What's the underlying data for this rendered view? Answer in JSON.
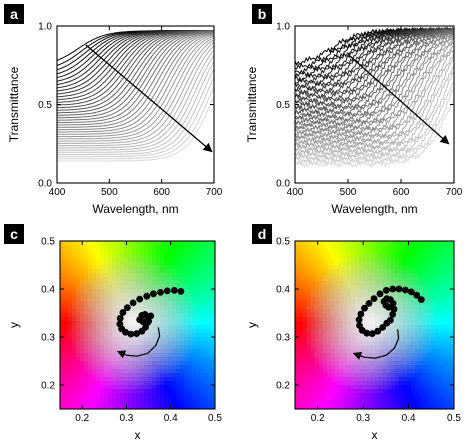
{
  "chart_data": [
    {
      "panel": "a",
      "type": "line",
      "xlabel": "Wavelength, nm",
      "ylabel": "Transmittance",
      "xlim": [
        400,
        700
      ],
      "ylim": [
        0,
        1
      ],
      "xticks": [
        "400",
        "500",
        "600",
        "700"
      ],
      "yticks": [
        "0.0",
        "0.5",
        "1.0"
      ],
      "curve_count": 38,
      "curve_colors": [
        "#000000",
        "#d8d8d8"
      ],
      "curve_shape": "sigmoid edge shifting to longer wavelength",
      "edge_wavelength_range": [
        440,
        700
      ],
      "max_transmittance": 0.97,
      "baseline_transmittance_range": [
        0.74,
        0.14
      ],
      "arrow": {
        "from": {
          "x": 455,
          "y": 0.88
        },
        "to": {
          "x": 696,
          "y": 0.2
        }
      }
    },
    {
      "panel": "b",
      "type": "line",
      "xlabel": "Wavelength, nm",
      "ylabel": "Transmittance",
      "xlim": [
        400,
        700
      ],
      "ylim": [
        0,
        1
      ],
      "xticks": [
        "400",
        "500",
        "600",
        "700"
      ],
      "yticks": [
        "0.0",
        "0.5",
        "1.0"
      ],
      "curve_count": 38,
      "curve_colors": [
        "#000000",
        "#d8d8d8"
      ],
      "curve_shape": "sigmoid edge shifting to longer wavelength",
      "edge_wavelength_range": [
        470,
        700
      ],
      "max_transmittance": 0.97,
      "baseline_transmittance_range": [
        0.75,
        0.12
      ],
      "arrow": {
        "from": {
          "x": 500,
          "y": 0.82
        },
        "to": {
          "x": 690,
          "y": 0.25
        }
      }
    },
    {
      "panel": "c",
      "type": "scatter",
      "background": "CIE chromaticity colour field",
      "xlabel": "x",
      "ylabel": "y",
      "xlim": [
        0.15,
        0.5
      ],
      "ylim": [
        0.15,
        0.5
      ],
      "xticks": [
        "0.2",
        "0.3",
        "0.4",
        "0.5"
      ],
      "yticks": [
        "0.2",
        "0.3",
        "0.4",
        "0.5"
      ],
      "points": [
        [
          0.423,
          0.395
        ],
        [
          0.408,
          0.397
        ],
        [
          0.392,
          0.396
        ],
        [
          0.377,
          0.393
        ],
        [
          0.361,
          0.39
        ],
        [
          0.346,
          0.385
        ],
        [
          0.33,
          0.379
        ],
        [
          0.315,
          0.371
        ],
        [
          0.302,
          0.361
        ],
        [
          0.292,
          0.351
        ],
        [
          0.286,
          0.339
        ],
        [
          0.285,
          0.327
        ],
        [
          0.289,
          0.317
        ],
        [
          0.298,
          0.31
        ],
        [
          0.31,
          0.306
        ],
        [
          0.323,
          0.307
        ],
        [
          0.335,
          0.312
        ],
        [
          0.343,
          0.32
        ],
        [
          0.348,
          0.33
        ],
        [
          0.348,
          0.34
        ],
        [
          0.342,
          0.347
        ],
        [
          0.335,
          0.345
        ],
        [
          0.33,
          0.336
        ],
        [
          0.337,
          0.332
        ],
        [
          0.35,
          0.333
        ],
        [
          0.355,
          0.344
        ]
      ],
      "arrow_path": [
        [
          0.372,
          0.32
        ],
        [
          0.375,
          0.302
        ],
        [
          0.366,
          0.282
        ],
        [
          0.348,
          0.266
        ],
        [
          0.324,
          0.26
        ],
        [
          0.3,
          0.262
        ],
        [
          0.28,
          0.27
        ]
      ]
    },
    {
      "panel": "d",
      "type": "scatter",
      "background": "CIE chromaticity colour field",
      "xlabel": "x",
      "ylabel": "y",
      "xlim": [
        0.15,
        0.5
      ],
      "ylim": [
        0.15,
        0.5
      ],
      "xticks": [
        "0.2",
        "0.3",
        "0.4",
        "0.5"
      ],
      "yticks": [
        "0.2",
        "0.3",
        "0.4",
        "0.5"
      ],
      "points": [
        [
          0.428,
          0.378
        ],
        [
          0.418,
          0.387
        ],
        [
          0.406,
          0.394
        ],
        [
          0.393,
          0.398
        ],
        [
          0.379,
          0.4
        ],
        [
          0.365,
          0.4
        ],
        [
          0.351,
          0.397
        ],
        [
          0.337,
          0.39
        ],
        [
          0.324,
          0.38
        ],
        [
          0.313,
          0.37
        ],
        [
          0.303,
          0.36
        ],
        [
          0.295,
          0.348
        ],
        [
          0.291,
          0.336
        ],
        [
          0.292,
          0.324
        ],
        [
          0.298,
          0.314
        ],
        [
          0.308,
          0.308
        ],
        [
          0.32,
          0.307
        ],
        [
          0.332,
          0.312
        ],
        [
          0.343,
          0.32
        ],
        [
          0.352,
          0.329
        ],
        [
          0.36,
          0.335
        ],
        [
          0.365,
          0.347
        ],
        [
          0.368,
          0.358
        ],
        [
          0.366,
          0.37
        ],
        [
          0.36,
          0.378
        ],
        [
          0.352,
          0.38
        ],
        [
          0.346,
          0.374
        ],
        [
          0.35,
          0.366
        ],
        [
          0.356,
          0.362
        ]
      ],
      "arrow_path": [
        [
          0.376,
          0.316
        ],
        [
          0.378,
          0.297
        ],
        [
          0.369,
          0.277
        ],
        [
          0.351,
          0.262
        ],
        [
          0.327,
          0.256
        ],
        [
          0.302,
          0.258
        ],
        [
          0.279,
          0.266
        ]
      ]
    }
  ],
  "panel_labels": [
    "a",
    "b",
    "c",
    "d"
  ]
}
